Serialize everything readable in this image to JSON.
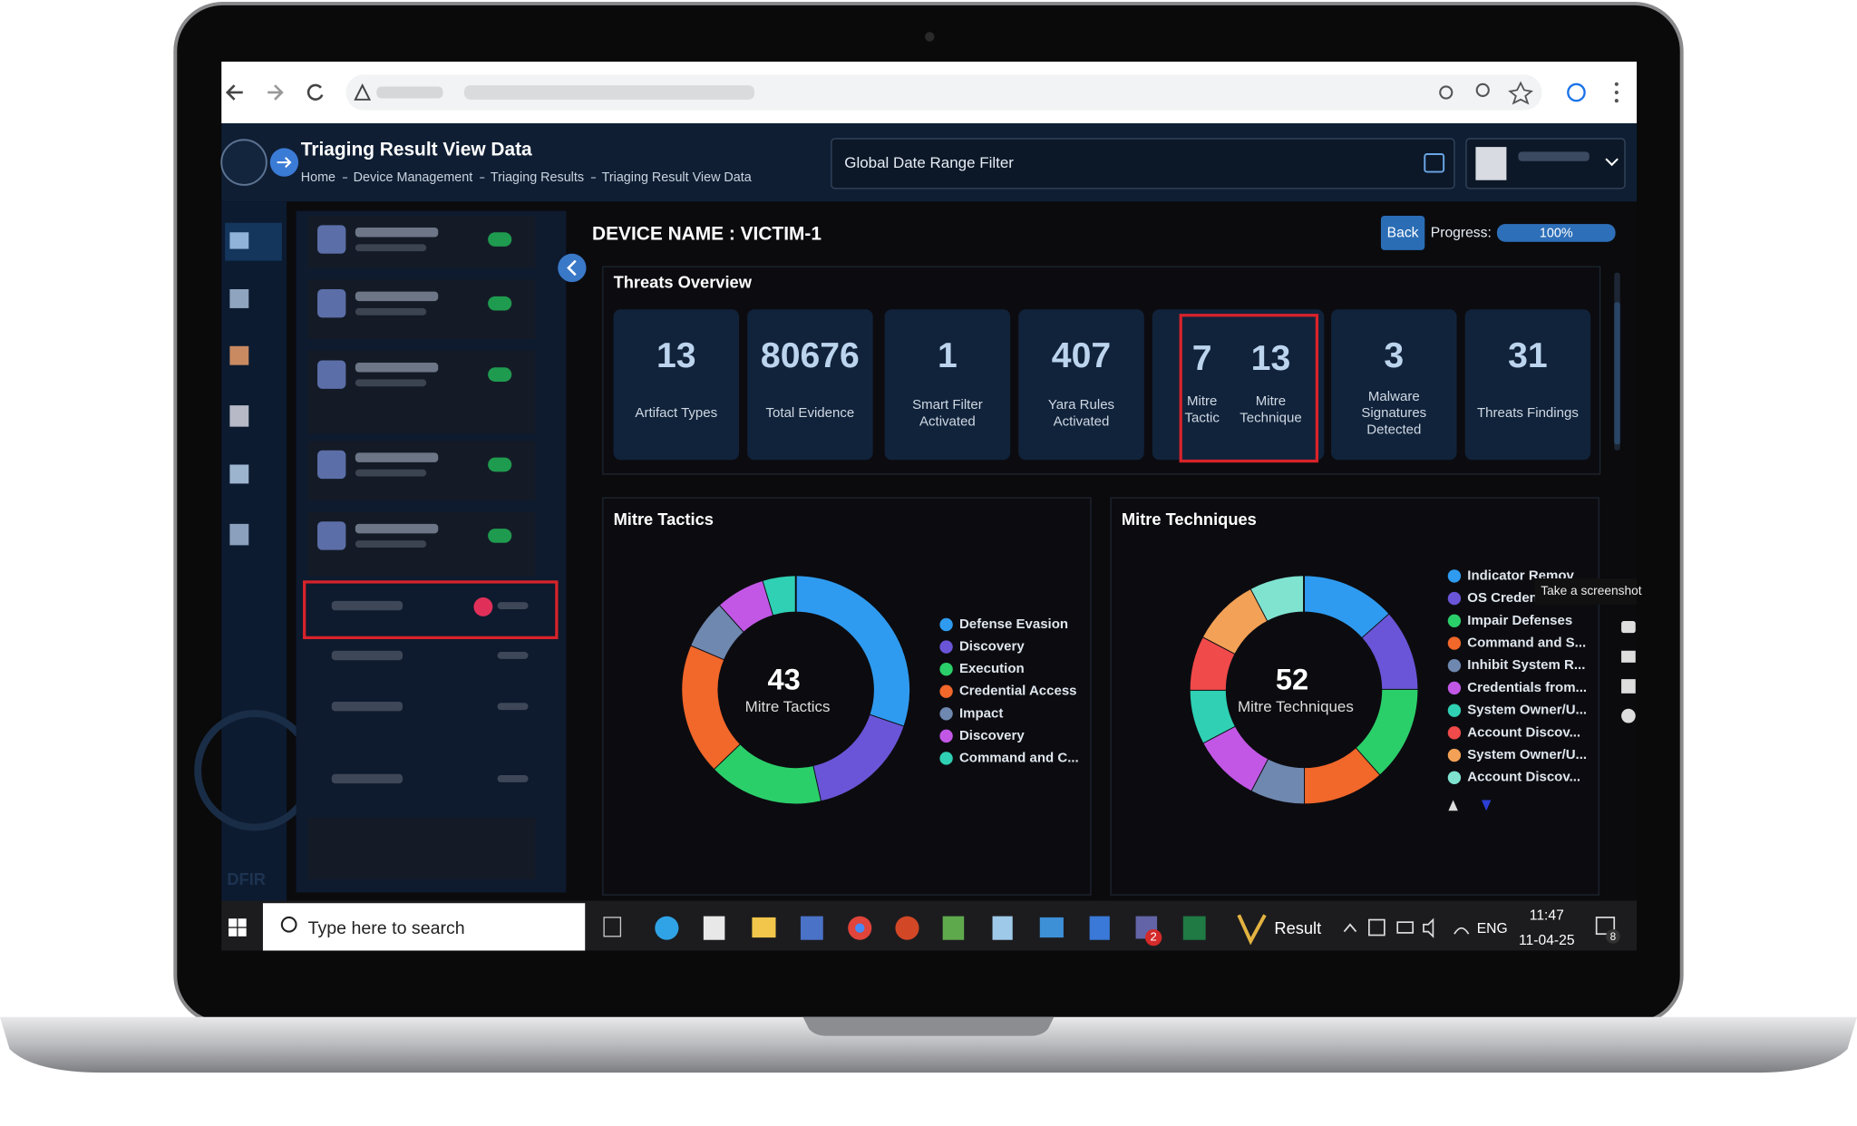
{
  "header": {
    "title": "Triaging Result View Data",
    "breadcrumbs": [
      "Home",
      "Device Management",
      "Triaging Results",
      "Triaging Result View Data"
    ],
    "date_filter": "Global Date Range Filter"
  },
  "device": {
    "name": "DEVICE NAME : VICTIM-1",
    "back": "Back",
    "progress_label": "Progress:",
    "progress": {
      "value": 100,
      "label": "100%"
    }
  },
  "threats_overview": {
    "title": "Threats Overview",
    "cards": [
      {
        "value": 13,
        "label": "Artifact Types"
      },
      {
        "value": 80676,
        "label": "Total Evidence"
      },
      {
        "value": 1,
        "label": "Smart Filter Activated"
      },
      {
        "value": 407,
        "label": "Yara Rules Activated"
      },
      {
        "items": [
          {
            "value": 7,
            "label": "Mitre Tactic"
          },
          {
            "value": 13,
            "label": "Mitre Technique"
          }
        ]
      },
      {
        "value": 3,
        "label": "Malware Signatures Detected"
      },
      {
        "value": 31,
        "label": "Threats Findings"
      }
    ]
  },
  "chart_data": [
    {
      "type": "donut",
      "title": "Mitre Tactics",
      "center_value": 43,
      "center_label": "Mitre Tactics",
      "categories": [
        "Defense Evasion",
        "Discovery",
        "Execution",
        "Credential Access",
        "Impact",
        "Discovery",
        "Command and C..."
      ],
      "values": [
        13,
        7,
        7,
        8,
        3,
        3,
        2
      ],
      "colors": [
        "#2f9bf0",
        "#6a55d8",
        "#2bcf6a",
        "#f2672a",
        "#6f88b0",
        "#c257e6",
        "#2fd0b3"
      ]
    },
    {
      "type": "donut",
      "title": "Mitre Techniques",
      "center_value": 52,
      "center_label": "Mitre Techniques",
      "categories": [
        "Indicator Remov",
        "OS Credent",
        "Impair Defenses",
        "Command and S...",
        "Inhibit System R...",
        "Credentials from...",
        "System Owner/U...",
        "Account Discov...",
        "System Owner/U...",
        "Account Discov..."
      ],
      "values": [
        7,
        6,
        7,
        6,
        4,
        5,
        4,
        4,
        5,
        4
      ],
      "colors": [
        "#2f9bf0",
        "#6a55d8",
        "#2bcf6a",
        "#f2672a",
        "#6f88b0",
        "#c257e6",
        "#2fd0b3",
        "#f04a4a",
        "#f3a156",
        "#7fe3d0"
      ]
    }
  ],
  "tooltip": "Take a screenshot",
  "taskbar": {
    "search": "Type here to search",
    "app": "Result",
    "teams_badge": 2,
    "language": "ENG",
    "time": "11:47",
    "date": "11-04-25",
    "notifications": 8
  }
}
